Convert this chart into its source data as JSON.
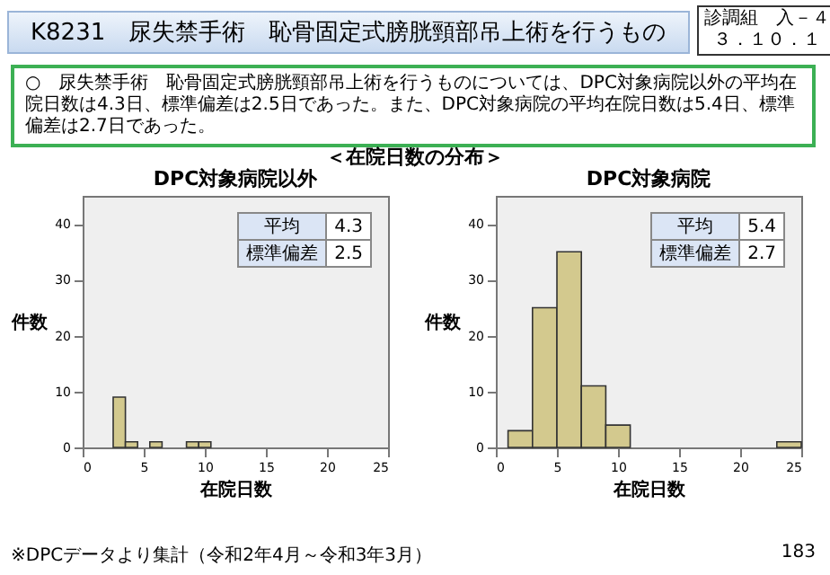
{
  "chart_data": [
    {
      "type": "other",
      "title": "K8231　尿失禁手術　恥骨固定式膀胱頸部吊上術を行うもの",
      "annotations": [
        "診調組　入－４",
        "３．１０．１",
        "○　尿失禁手術　恥骨固定式膀胱頸部吊上術を行うものについては、DPC対象病院以外の平均在院日数は4.3日、標準偏差は2.5日であった。また、DPC対象病院の平均在院日数は5.4日、標準偏差は2.7日であった。",
        "＜在院日数の分布＞",
        "※DPCデータより集計（令和2年4月～令和3年3月）",
        "183"
      ]
    },
    {
      "type": "histogram",
      "title": "DPC対象病院以外",
      "xlabel": "在院日数",
      "ylabel": "件数",
      "bins": [
        2.5,
        3.5,
        4.5,
        5.5,
        6.5,
        7.5,
        8.5,
        9.5,
        10.5
      ],
      "values": [
        9,
        1,
        0,
        1,
        0,
        0,
        1,
        1
      ],
      "color": "#d3c98e",
      "xlim": [
        0,
        25
      ],
      "xticks": [
        0,
        5,
        10,
        15,
        20,
        25
      ],
      "ylim": [
        0,
        45
      ],
      "yticks": [
        0,
        10,
        20,
        30,
        40
      ],
      "annotations": [
        "平均",
        "4.3",
        "標準偏差",
        "2.5"
      ]
    },
    {
      "type": "histogram",
      "title": "DPC対象病院",
      "xlabel": "在院日数",
      "ylabel": "件数",
      "bins": [
        1,
        3,
        5,
        7,
        9,
        11,
        13,
        15,
        17,
        19,
        21,
        23,
        25
      ],
      "values": [
        3,
        25,
        35,
        11,
        4,
        0,
        0,
        0,
        0,
        0,
        0,
        1
      ],
      "color": "#d3c98e",
      "xlim": [
        0,
        25
      ],
      "xticks": [
        0,
        5,
        10,
        15,
        20,
        25
      ],
      "ylim": [
        0,
        45
      ],
      "yticks": [
        0,
        10,
        20,
        30,
        40
      ],
      "annotations": [
        "平均",
        "5.4",
        "標準偏差",
        "2.7"
      ]
    }
  ]
}
